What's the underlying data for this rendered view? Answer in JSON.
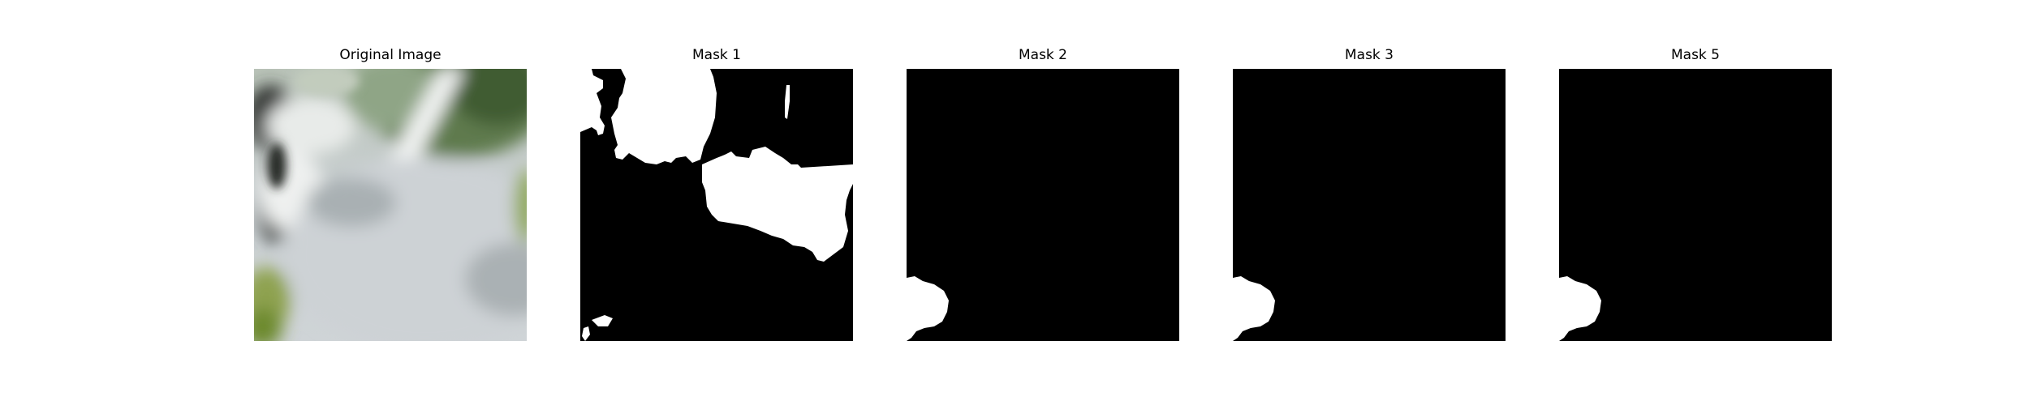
{
  "figure": {
    "panels": [
      {
        "title": "Original Image"
      },
      {
        "title": "Mask 1"
      },
      {
        "title": "Mask 2"
      },
      {
        "title": "Mask 3"
      },
      {
        "title": "Mask 5"
      }
    ]
  },
  "colors": {
    "mask_background": "#000000",
    "mask_foreground": "#ffffff"
  }
}
